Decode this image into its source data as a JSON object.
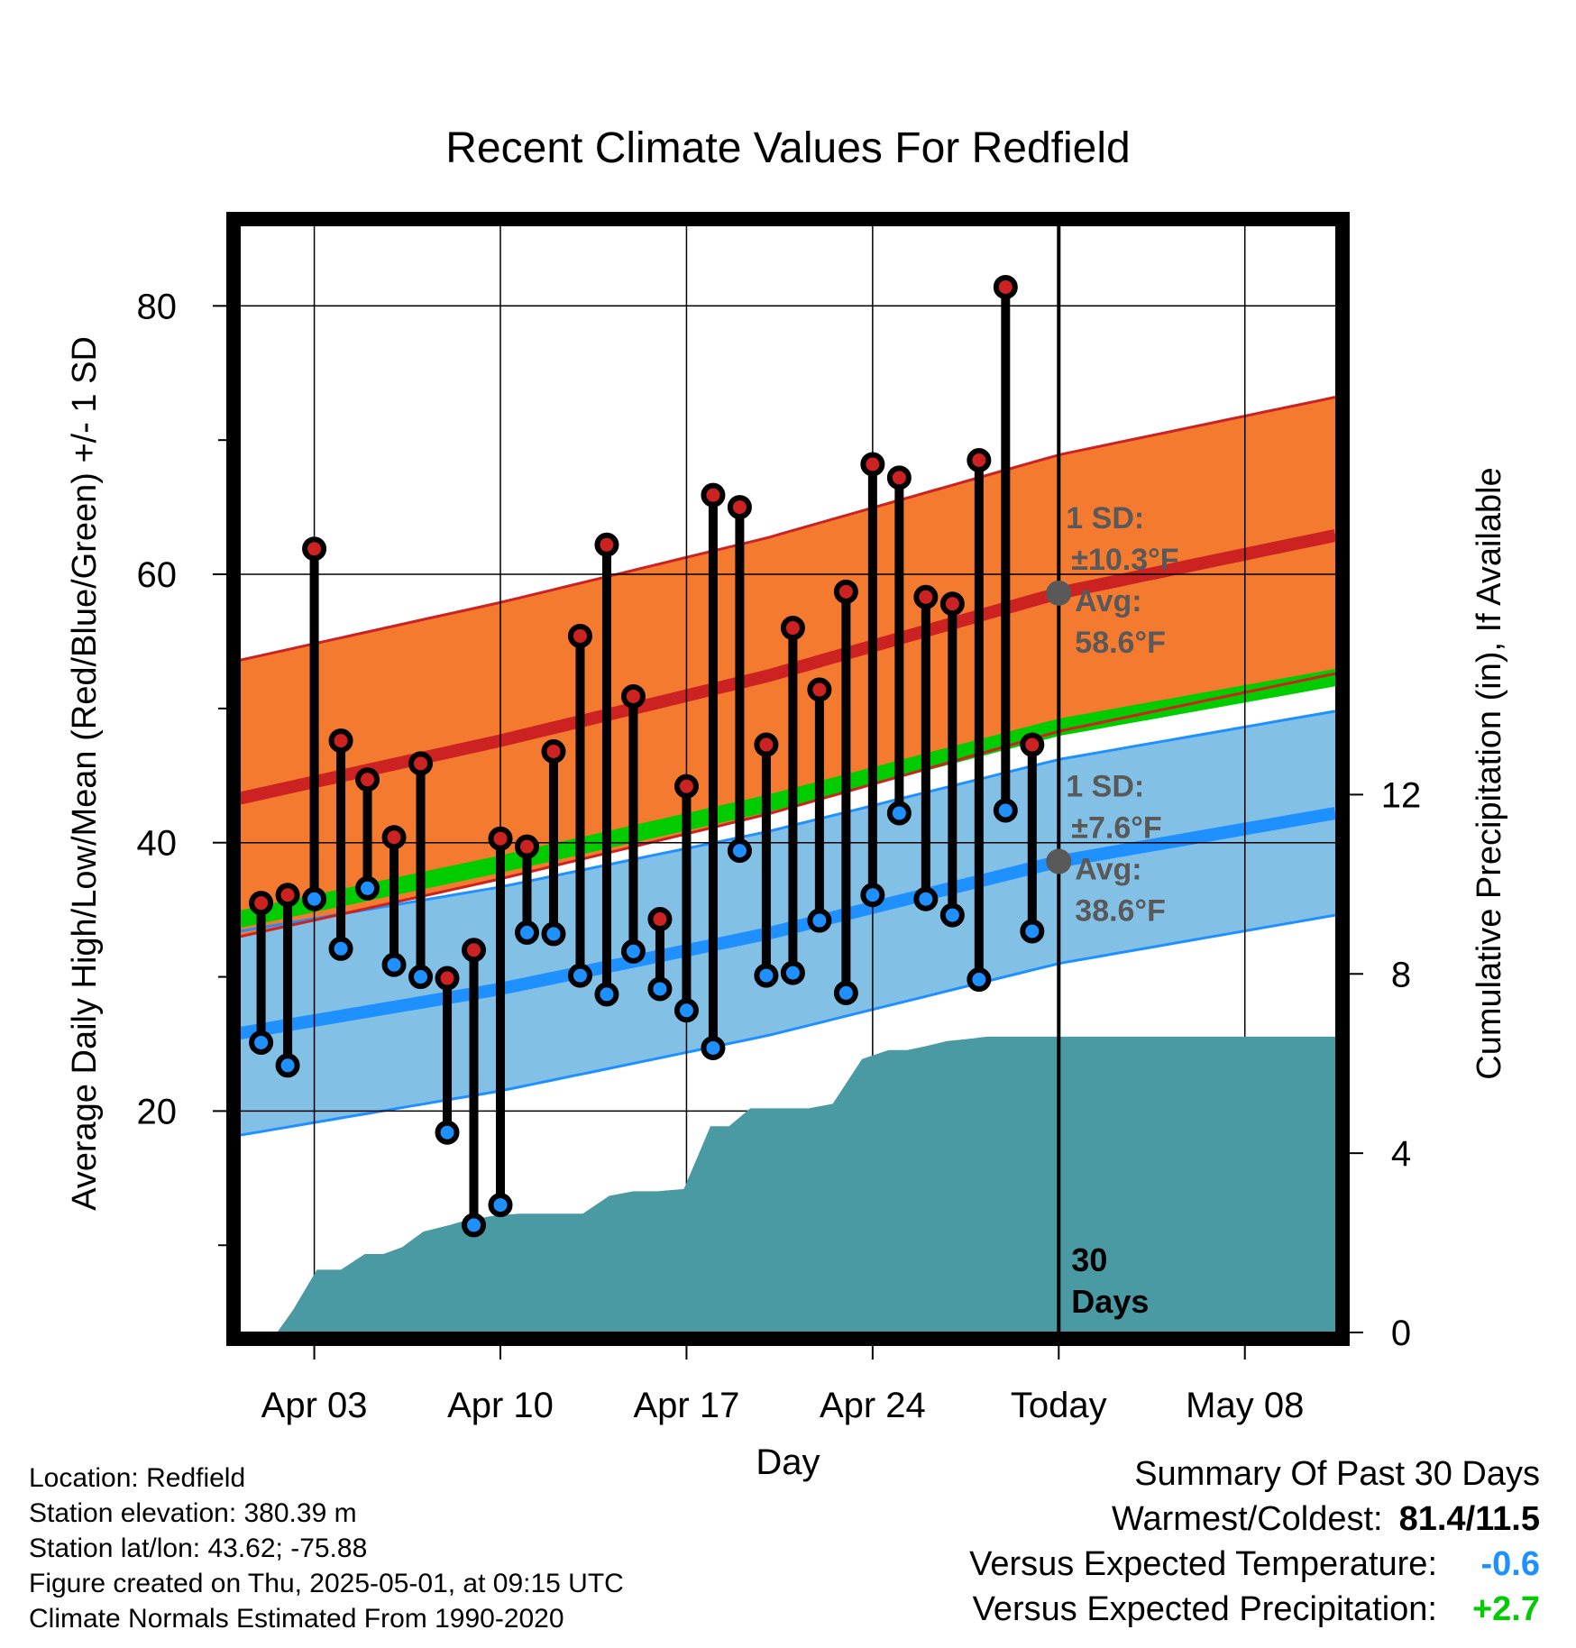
{
  "chart_data": {
    "type": "line",
    "title": "Recent Climate Values For Redfield",
    "xlabel": "Day",
    "ylabel_left": "Average Daily High/Low/Mean (Red/Blue/Green) +/- 1 SD",
    "ylabel_right": "Cumulative Precipitation (in), If Available",
    "x_tick_labels": [
      "Apr 03",
      "Apr 10",
      "Apr 17",
      "Apr 24",
      "Today",
      "May 08"
    ],
    "y_left_ticks": [
      20,
      40,
      60,
      80
    ],
    "y_right_ticks": [
      0,
      4,
      8,
      12
    ],
    "xlim_days_from_apr1": [
      0.2,
      41.4
    ],
    "ylim_left": [
      3.5,
      86
    ],
    "ylim_right": [
      0,
      24.7
    ],
    "today_day": 31,
    "today_label": "30 Days",
    "grid": true,
    "normals": {
      "high_mean": [
        [
          0.2,
          43.3
        ],
        [
          10,
          47.6
        ],
        [
          20,
          52.4
        ],
        [
          31,
          58.6
        ],
        [
          41.4,
          62.9
        ]
      ],
      "high_sd": 10.3,
      "low_mean": [
        [
          0.2,
          25.8
        ],
        [
          10,
          29.1
        ],
        [
          20,
          33.2
        ],
        [
          31,
          38.6
        ],
        [
          41.4,
          42.2
        ]
      ],
      "low_sd": 7.6,
      "mean": [
        [
          0.2,
          34.3
        ],
        [
          10,
          38.4
        ],
        [
          20,
          42.9
        ],
        [
          31,
          48.6
        ],
        [
          41.4,
          52.3
        ]
      ]
    },
    "annotations": {
      "high": {
        "sd_label": "1 SD:",
        "sd_value": "±10.3°F",
        "avg_label": "Avg:",
        "avg_value": "58.6°F"
      },
      "low": {
        "sd_label": "1 SD:",
        "sd_value": "±7.6°F",
        "avg_label": "Avg:",
        "avg_value": "38.6°F"
      }
    },
    "observed": {
      "days": [
        1,
        2,
        3,
        4,
        5,
        6,
        7,
        8,
        9,
        10,
        11,
        12,
        13,
        14,
        15,
        16,
        17,
        18,
        19,
        20,
        21,
        22,
        23,
        24,
        25,
        26,
        27,
        28,
        29,
        30
      ],
      "high": [
        35.5,
        36.1,
        61.9,
        47.6,
        44.7,
        40.4,
        45.9,
        29.9,
        32.0,
        40.3,
        39.7,
        46.8,
        55.4,
        62.2,
        50.9,
        34.3,
        44.2,
        65.9,
        65.0,
        47.3,
        56.0,
        51.4,
        58.7,
        68.2,
        67.2,
        58.3,
        57.8,
        68.5,
        81.4,
        47.3
      ],
      "low": [
        25.1,
        23.4,
        35.8,
        32.1,
        36.6,
        30.9,
        30.0,
        18.4,
        11.5,
        13.0,
        33.3,
        33.2,
        30.1,
        28.7,
        31.9,
        29.1,
        27.5,
        24.7,
        39.4,
        30.1,
        30.3,
        34.2,
        28.8,
        36.1,
        42.2,
        35.8,
        34.6,
        29.8,
        42.4,
        33.4
      ]
    },
    "precipitation": {
      "x": [
        0.2,
        1.6,
        2.2,
        3.1,
        4.0,
        4.9,
        5.6,
        6.3,
        7.1,
        8.1,
        8.7,
        9.7,
        10.7,
        12.0,
        13.1,
        14.1,
        15.0,
        15.9,
        16.9,
        17.9,
        18.6,
        19.4,
        20.0,
        20.9,
        21.6,
        22.5,
        23.6,
        24.6,
        25.3,
        26.1,
        26.8,
        27.6,
        28.3,
        29.1,
        30.0,
        41.4
      ],
      "values": [
        0,
        0,
        0.5,
        1.4,
        1.4,
        1.75,
        1.75,
        1.9,
        2.25,
        2.4,
        2.5,
        2.6,
        2.65,
        2.65,
        2.65,
        3.05,
        3.15,
        3.15,
        3.2,
        4.6,
        4.6,
        5.0,
        5.0,
        5.0,
        5.0,
        5.1,
        6.1,
        6.3,
        6.3,
        6.4,
        6.5,
        6.55,
        6.6,
        6.6,
        6.6,
        6.6
      ]
    }
  },
  "footer": {
    "location": "Location: Redfield",
    "elevation": "Station elevation: 380.39 m",
    "latlon": "Station lat/lon: 43.62; -75.88",
    "created": "Figure created on Thu, 2025-05-01, at 09:15 UTC",
    "normals": "Climate Normals Estimated From 1990-2020"
  },
  "summary": {
    "title": "Summary Of Past 30 Days",
    "warm_cold_label": "Warmest/Coldest:",
    "warm_cold_value": "81.4/11.5",
    "temp_label": "Versus Expected Temperature:",
    "temp_value": "-0.6",
    "temp_color": "#1e90ff",
    "precip_label": "Versus Expected Precipitation:",
    "precip_value": "+2.7",
    "precip_color": "#00cc00"
  },
  "colors": {
    "high_band": "#f47a2f",
    "high_line": "#cc2222",
    "low_band": "#82c0e6",
    "low_line": "#1e90ff",
    "mean_band": "#00cc00",
    "precip": "#4a9aa3",
    "high_dot": "#cc2222",
    "low_dot": "#1e90ff",
    "annotation": "#595959"
  }
}
